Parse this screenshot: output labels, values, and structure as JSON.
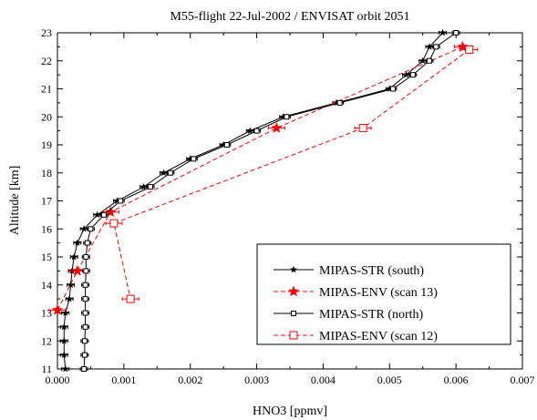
{
  "chart_data": {
    "type": "line",
    "title": "M55-flight 22-Jul-2002 / ENVISAT orbit 2051",
    "xlabel": "HNO3 [ppmv]",
    "ylabel": "Altitude [km]",
    "xlim": [
      0,
      0.007
    ],
    "ylim": [
      11,
      23
    ],
    "x_ticks": [
      "0.000",
      "0.001",
      "0.002",
      "0.003",
      "0.004",
      "0.005",
      "0.006",
      "0.007"
    ],
    "y_ticks": [
      "11",
      "12",
      "13",
      "14",
      "15",
      "16",
      "17",
      "18",
      "19",
      "20",
      "21",
      "22",
      "23"
    ],
    "grid": false,
    "legend_position": "lower-right",
    "series": [
      {
        "name": "MIPAS-STR (south)",
        "color": "#000000",
        "line": "solid",
        "marker": "star",
        "points": [
          [
            0.0058,
            23.0
          ],
          [
            0.0056,
            22.5
          ],
          [
            0.0055,
            22.0
          ],
          [
            0.00525,
            21.5
          ],
          [
            0.005,
            21.0
          ],
          [
            0.0042,
            20.5
          ],
          [
            0.0034,
            20.0
          ],
          [
            0.0029,
            19.5
          ],
          [
            0.0025,
            19.0
          ],
          [
            0.002,
            18.5
          ],
          [
            0.0016,
            18.0
          ],
          [
            0.0013,
            17.5
          ],
          [
            0.0009,
            17.0
          ],
          [
            0.0006,
            16.5
          ],
          [
            0.0004,
            16.0
          ],
          [
            0.0003,
            15.5
          ],
          [
            0.00025,
            15.0
          ],
          [
            0.00022,
            14.5
          ],
          [
            0.0002,
            14.0
          ],
          [
            0.00018,
            13.5
          ],
          [
            0.00012,
            13.0
          ],
          [
            0.0001,
            12.5
          ],
          [
            0.0001,
            12.0
          ],
          [
            0.0001,
            11.5
          ],
          [
            0.00012,
            11.0
          ]
        ]
      },
      {
        "name": "MIPAS-ENV (scan 13)",
        "color": "#ff0000",
        "line": "dashed",
        "marker": "star",
        "points": [
          [
            0.0061,
            22.5
          ],
          [
            0.0033,
            19.6
          ],
          [
            0.0008,
            16.6
          ],
          [
            0.0003,
            14.5
          ],
          [
            0.0,
            13.1
          ]
        ]
      },
      {
        "name": "MIPAS-STR (north)",
        "color": "#000000",
        "line": "solid",
        "marker": "square-open",
        "points": [
          [
            0.006,
            23.0
          ],
          [
            0.0057,
            22.5
          ],
          [
            0.0056,
            22.0
          ],
          [
            0.00535,
            21.5
          ],
          [
            0.00505,
            21.0
          ],
          [
            0.00425,
            20.5
          ],
          [
            0.00345,
            20.0
          ],
          [
            0.003,
            19.5
          ],
          [
            0.00255,
            19.0
          ],
          [
            0.00205,
            18.5
          ],
          [
            0.0017,
            18.0
          ],
          [
            0.0014,
            17.5
          ],
          [
            0.00095,
            17.0
          ],
          [
            0.0007,
            16.5
          ],
          [
            0.0005,
            16.0
          ],
          [
            0.00045,
            15.5
          ],
          [
            0.00043,
            15.0
          ],
          [
            0.00043,
            14.5
          ],
          [
            0.00042,
            14.0
          ],
          [
            0.00042,
            13.5
          ],
          [
            0.00042,
            13.0
          ],
          [
            0.00042,
            12.5
          ],
          [
            0.00041,
            12.0
          ],
          [
            0.00041,
            11.5
          ],
          [
            0.0004,
            11.0
          ]
        ]
      },
      {
        "name": "MIPAS-ENV (scan 12)",
        "color": "#ff0000",
        "line": "dashed",
        "marker": "square-open",
        "points": [
          [
            0.0062,
            22.4
          ],
          [
            0.0046,
            19.6
          ],
          [
            0.00085,
            16.2
          ],
          [
            0.0011,
            13.5
          ]
        ]
      }
    ]
  }
}
